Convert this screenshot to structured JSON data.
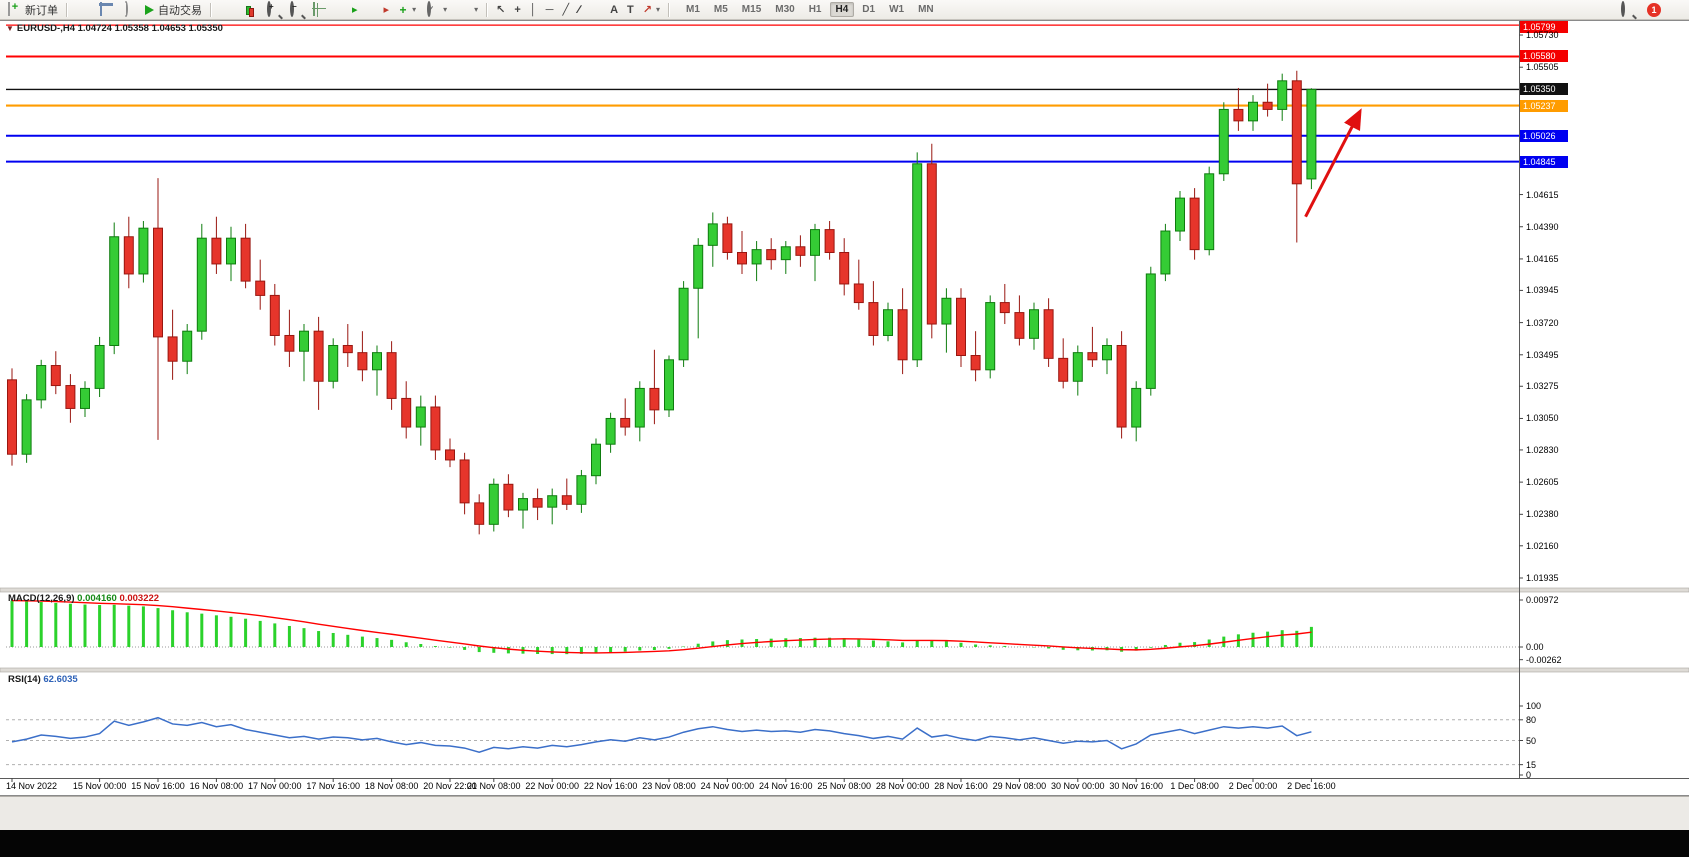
{
  "toolbar": {
    "new_order": "新订单",
    "autotrade": "自动交易",
    "timeframes": [
      "M1",
      "M5",
      "M15",
      "M30",
      "H1",
      "H4",
      "D1",
      "W1",
      "MN"
    ],
    "active_timeframe": "H4",
    "notification_count": "1"
  },
  "icons": {
    "one_click": "▼",
    "cursor": "↖",
    "crosshair": "+",
    "vertical_line": "│",
    "horizontal_line": "─",
    "trendline": "╱",
    "channel": "∕∕",
    "text": "A",
    "label": "T",
    "arrows": "↗",
    "caret": "▾",
    "zoom_in": "+",
    "zoom_out": "−",
    "scroll": "▸"
  },
  "chart": {
    "title": "EURUSD-,H4 1.04724 1.05358 1.04653 1.05350"
  },
  "indicators": {
    "macd_label": "MACD(12,26,9)",
    "macd_main": "0.004160",
    "macd_signal": "0.003222",
    "rsi_label": "RSI(14)",
    "rsi_value": "62.6035"
  },
  "chart_data": {
    "type": "candlestick",
    "symbol": "EURUSD-",
    "timeframe": "H4",
    "last_ohlc": {
      "open": "1.04724",
      "high": "1.05358",
      "low": "1.04653",
      "close": "1.05350"
    },
    "colors": {
      "bull": "#35cc35",
      "bull_edge": "#0e7c0e",
      "bear": "#e6352b",
      "bear_edge": "#991710",
      "macd_hist": "#2bd22b",
      "macd_signal": "#ff0000",
      "rsi_line": "#3b6fc9",
      "arrow": "#e01010"
    },
    "price_axis": {
      "max": 1.05828,
      "min": 1.01865,
      "ticks": [
        {
          "label": "1.05730",
          "price": 1.0573
        },
        {
          "label": "1.05505",
          "price": 1.05505
        },
        {
          "label": "1.04615",
          "price": 1.04615
        },
        {
          "label": "1.04390",
          "price": 1.0439
        },
        {
          "label": "1.04165",
          "price": 1.04165
        },
        {
          "label": "1.03945",
          "price": 1.03945
        },
        {
          "label": "1.03720",
          "price": 1.0372
        },
        {
          "label": "1.03495",
          "price": 1.03495
        },
        {
          "label": "1.03275",
          "price": 1.03275
        },
        {
          "label": "1.03050",
          "price": 1.0305
        },
        {
          "label": "1.02830",
          "price": 1.0283
        },
        {
          "label": "1.02605",
          "price": 1.02605
        },
        {
          "label": "1.02380",
          "price": 1.0238
        },
        {
          "label": "1.02160",
          "price": 1.0216
        },
        {
          "label": "1.01935",
          "price": 1.01935
        }
      ]
    },
    "hlines": [
      {
        "price": 1.05799,
        "color": "#ff0000",
        "width": 1.2,
        "badge": "1.05799",
        "badge_bg": "#f40000"
      },
      {
        "price": 1.0558,
        "color": "#ff0000",
        "width": 2,
        "badge": "1.05580",
        "badge_bg": "#f40000"
      },
      {
        "price": 1.0535,
        "color": "#111111",
        "width": 1.4,
        "badge": "1.05350",
        "badge_bg": "#111111"
      },
      {
        "price": 1.05237,
        "color": "#ff9c00",
        "width": 2.2,
        "badge": "1.05237",
        "badge_bg": "#ff9c00"
      },
      {
        "price": 1.05026,
        "color": "#0000f0",
        "width": 2,
        "badge": "1.05026",
        "badge_bg": "#0000f0"
      },
      {
        "price": 1.04845,
        "color": "#0000f0",
        "width": 2,
        "badge": "1.04845",
        "badge_bg": "#0000f0"
      }
    ],
    "candles": [
      [
        1.0332,
        1.034,
        1.0272,
        1.028
      ],
      [
        1.028,
        1.0322,
        1.0274,
        1.0318
      ],
      [
        1.0318,
        1.0346,
        1.0312,
        1.0342
      ],
      [
        1.0342,
        1.0352,
        1.0322,
        1.0328
      ],
      [
        1.0328,
        1.0336,
        1.0302,
        1.0312
      ],
      [
        1.0312,
        1.0331,
        1.0306,
        1.0326
      ],
      [
        1.0326,
        1.0362,
        1.032,
        1.0356
      ],
      [
        1.0356,
        1.0442,
        1.035,
        1.0432
      ],
      [
        1.0432,
        1.0446,
        1.0396,
        1.0406
      ],
      [
        1.0406,
        1.0443,
        1.04,
        1.0438
      ],
      [
        1.0438,
        1.0473,
        1.029,
        1.0362
      ],
      [
        1.0362,
        1.0381,
        1.0332,
        1.0345
      ],
      [
        1.0345,
        1.0371,
        1.0336,
        1.0366
      ],
      [
        1.0366,
        1.0441,
        1.036,
        1.0431
      ],
      [
        1.0431,
        1.0446,
        1.0406,
        1.0413
      ],
      [
        1.0413,
        1.0439,
        1.0401,
        1.0431
      ],
      [
        1.0431,
        1.0441,
        1.0396,
        1.0401
      ],
      [
        1.0401,
        1.0416,
        1.0381,
        1.0391
      ],
      [
        1.0391,
        1.0399,
        1.0356,
        1.0363
      ],
      [
        1.0363,
        1.0381,
        1.0341,
        1.0352
      ],
      [
        1.0352,
        1.0371,
        1.0331,
        1.0366
      ],
      [
        1.0366,
        1.0376,
        1.0311,
        1.0331
      ],
      [
        1.0331,
        1.0361,
        1.0326,
        1.0356
      ],
      [
        1.0356,
        1.0371,
        1.0341,
        1.0351
      ],
      [
        1.0351,
        1.0366,
        1.0331,
        1.0339
      ],
      [
        1.0339,
        1.0356,
        1.0321,
        1.0351
      ],
      [
        1.0351,
        1.0359,
        1.0311,
        1.0319
      ],
      [
        1.0319,
        1.0331,
        1.0291,
        1.0299
      ],
      [
        1.0299,
        1.0321,
        1.0286,
        1.0313
      ],
      [
        1.0313,
        1.0321,
        1.0276,
        1.0283
      ],
      [
        1.0283,
        1.0291,
        1.0271,
        1.0276
      ],
      [
        1.0276,
        1.0281,
        1.0238,
        1.0246
      ],
      [
        1.0246,
        1.0252,
        1.0224,
        1.0231
      ],
      [
        1.0231,
        1.0263,
        1.0226,
        1.0259
      ],
      [
        1.0259,
        1.0266,
        1.0236,
        1.0241
      ],
      [
        1.0241,
        1.0253,
        1.0228,
        1.0249
      ],
      [
        1.0249,
        1.0256,
        1.0234,
        1.0243
      ],
      [
        1.0243,
        1.0256,
        1.0231,
        1.0251
      ],
      [
        1.0251,
        1.0263,
        1.0241,
        1.0245
      ],
      [
        1.0245,
        1.0269,
        1.0239,
        1.0265
      ],
      [
        1.0265,
        1.0291,
        1.0259,
        1.0287
      ],
      [
        1.0287,
        1.0309,
        1.0281,
        1.0305
      ],
      [
        1.0305,
        1.0319,
        1.0293,
        1.0299
      ],
      [
        1.0299,
        1.0331,
        1.0289,
        1.0326
      ],
      [
        1.0326,
        1.0353,
        1.0301,
        1.0311
      ],
      [
        1.0311,
        1.0349,
        1.0306,
        1.0346
      ],
      [
        1.0346,
        1.0401,
        1.0341,
        1.0396
      ],
      [
        1.0396,
        1.0431,
        1.0361,
        1.0426
      ],
      [
        1.0426,
        1.0449,
        1.0411,
        1.0441
      ],
      [
        1.0441,
        1.0446,
        1.0416,
        1.0421
      ],
      [
        1.0421,
        1.0436,
        1.0406,
        1.0413
      ],
      [
        1.0413,
        1.0429,
        1.0401,
        1.0423
      ],
      [
        1.0423,
        1.0431,
        1.0409,
        1.0416
      ],
      [
        1.0416,
        1.0429,
        1.0406,
        1.0425
      ],
      [
        1.0425,
        1.0433,
        1.0411,
        1.0419
      ],
      [
        1.0419,
        1.0441,
        1.0401,
        1.0437
      ],
      [
        1.0437,
        1.0443,
        1.0416,
        1.0421
      ],
      [
        1.0421,
        1.0431,
        1.0391,
        1.0399
      ],
      [
        1.0399,
        1.0416,
        1.0381,
        1.0386
      ],
      [
        1.0386,
        1.0401,
        1.0356,
        1.0363
      ],
      [
        1.0363,
        1.0386,
        1.0359,
        1.0381
      ],
      [
        1.0381,
        1.0396,
        1.0336,
        1.0346
      ],
      [
        1.0346,
        1.0491,
        1.0341,
        1.0483
      ],
      [
        1.0483,
        1.0497,
        1.0361,
        1.0371
      ],
      [
        1.0371,
        1.0396,
        1.0351,
        1.0389
      ],
      [
        1.0389,
        1.0396,
        1.0341,
        1.0349
      ],
      [
        1.0349,
        1.0366,
        1.0331,
        1.0339
      ],
      [
        1.0339,
        1.0391,
        1.0333,
        1.0386
      ],
      [
        1.0386,
        1.0399,
        1.0371,
        1.0379
      ],
      [
        1.0379,
        1.0391,
        1.0356,
        1.0361
      ],
      [
        1.0361,
        1.0386,
        1.0353,
        1.0381
      ],
      [
        1.0381,
        1.0389,
        1.0341,
        1.0347
      ],
      [
        1.0347,
        1.0361,
        1.0326,
        1.0331
      ],
      [
        1.0331,
        1.0356,
        1.0321,
        1.0351
      ],
      [
        1.0351,
        1.0369,
        1.0341,
        1.0346
      ],
      [
        1.0346,
        1.0361,
        1.0336,
        1.0356
      ],
      [
        1.0356,
        1.0366,
        1.0291,
        1.0299
      ],
      [
        1.0299,
        1.0331,
        1.0289,
        1.0326
      ],
      [
        1.0326,
        1.0411,
        1.0321,
        1.0406
      ],
      [
        1.0406,
        1.0441,
        1.0401,
        1.0436
      ],
      [
        1.0436,
        1.0464,
        1.0429,
        1.0459
      ],
      [
        1.0459,
        1.0466,
        1.0416,
        1.0423
      ],
      [
        1.0423,
        1.0481,
        1.0419,
        1.0476
      ],
      [
        1.0476,
        1.0526,
        1.0471,
        1.0521
      ],
      [
        1.0521,
        1.0536,
        1.0506,
        1.0513
      ],
      [
        1.0513,
        1.0531,
        1.0506,
        1.0526
      ],
      [
        1.0526,
        1.0539,
        1.0516,
        1.0521
      ],
      [
        1.0521,
        1.0546,
        1.0513,
        1.0541
      ],
      [
        1.0541,
        1.0548,
        1.0428,
        1.0469
      ],
      [
        1.04724,
        1.05358,
        1.04653,
        1.0535
      ]
    ],
    "x_labels": [
      {
        "label": "14 Nov 2022",
        "i": 0
      },
      {
        "label": "15 Nov 00:00",
        "i": 6
      },
      {
        "label": "15 Nov 16:00",
        "i": 10
      },
      {
        "label": "16 Nov 08:00",
        "i": 14
      },
      {
        "label": "17 Nov 00:00",
        "i": 18
      },
      {
        "label": "17 Nov 16:00",
        "i": 22
      },
      {
        "label": "18 Nov 08:00",
        "i": 26
      },
      {
        "label": "20 Nov 22:00",
        "i": 30
      },
      {
        "label": "21 Nov 08:00",
        "i": 33
      },
      {
        "label": "22 Nov 00:00",
        "i": 37
      },
      {
        "label": "22 Nov 16:00",
        "i": 41
      },
      {
        "label": "23 Nov 08:00",
        "i": 45
      },
      {
        "label": "24 Nov 00:00",
        "i": 49
      },
      {
        "label": "24 Nov 16:00",
        "i": 53
      },
      {
        "label": "25 Nov 08:00",
        "i": 57
      },
      {
        "label": "28 Nov 00:00",
        "i": 61
      },
      {
        "label": "28 Nov 16:00",
        "i": 65
      },
      {
        "label": "29 Nov 08:00",
        "i": 69
      },
      {
        "label": "30 Nov 00:00",
        "i": 73
      },
      {
        "label": "30 Nov 16:00",
        "i": 77
      },
      {
        "label": "1 Dec 08:00",
        "i": 81
      },
      {
        "label": "2 Dec 00:00",
        "i": 85
      },
      {
        "label": "2 Dec 16:00",
        "i": 89
      }
    ],
    "macd": {
      "hist": [
        0.0096,
        0.00945,
        0.0093,
        0.00912,
        0.00895,
        0.00878,
        0.00868,
        0.00872,
        0.00855,
        0.0084,
        0.00805,
        0.0076,
        0.00718,
        0.0069,
        0.00655,
        0.00625,
        0.00585,
        0.0054,
        0.00488,
        0.00435,
        0.0039,
        0.0033,
        0.0029,
        0.00252,
        0.00215,
        0.00185,
        0.00148,
        0.00098,
        0.00062,
        0.0002,
        -0.00012,
        -0.0006,
        -0.00105,
        -0.0012,
        -0.00132,
        -0.00138,
        -0.00145,
        -0.00146,
        -0.00148,
        -0.00143,
        -0.00128,
        -0.00105,
        -0.00095,
        -0.00072,
        -0.00062,
        -0.00038,
        0.0001,
        0.00068,
        0.00115,
        0.00142,
        0.00155,
        0.00165,
        0.00172,
        0.0018,
        0.00185,
        0.00192,
        0.00192,
        0.00182,
        0.00162,
        0.00135,
        0.00118,
        0.00095,
        0.00135,
        0.00138,
        0.0012,
        0.00088,
        0.00052,
        0.00035,
        0.00022,
        2e-05,
        -8e-05,
        -0.0003,
        -0.00058,
        -0.00068,
        -0.00072,
        -0.00068,
        -0.00098,
        -0.00075,
        -0.00015,
        0.00042,
        0.00088,
        0.00102,
        0.00155,
        0.00215,
        0.00262,
        0.00295,
        0.00318,
        0.00348,
        0.00335,
        0.00416
      ],
      "axis": [
        {
          "label": "0.00972",
          "v": 0.00972
        },
        {
          "label": "0.00",
          "v": 0
        },
        {
          "label": "-0.00262",
          "v": -0.00262
        }
      ]
    },
    "rsi": {
      "series": [
        48,
        52,
        58,
        56,
        53,
        55,
        60,
        78,
        72,
        77,
        83,
        74,
        72,
        76,
        70,
        73,
        66,
        62,
        58,
        54,
        56,
        52,
        55,
        54,
        51,
        53,
        48,
        44,
        47,
        43,
        42,
        39,
        33,
        40,
        38,
        41,
        39,
        43,
        41,
        44,
        48,
        51,
        49,
        54,
        51,
        55,
        62,
        67,
        70,
        66,
        63,
        65,
        63,
        64,
        62,
        66,
        64,
        60,
        57,
        53,
        56,
        52,
        68,
        55,
        58,
        53,
        50,
        56,
        54,
        51,
        54,
        50,
        46,
        49,
        48,
        50,
        38,
        45,
        58,
        62,
        66,
        60,
        65,
        70,
        68,
        70,
        68,
        71,
        57,
        62.6
      ],
      "levels": [
        80,
        50,
        15
      ],
      "axis": [
        {
          "label": "100",
          "v": 100
        },
        {
          "label": "80",
          "v": 80
        },
        {
          "label": "50",
          "v": 50
        },
        {
          "label": "15",
          "v": 15
        },
        {
          "label": "0",
          "v": 0
        }
      ]
    },
    "arrow": {
      "i1": 88.6,
      "p1": 1.0446,
      "i2": 92.3,
      "p2": 1.0519
    }
  }
}
